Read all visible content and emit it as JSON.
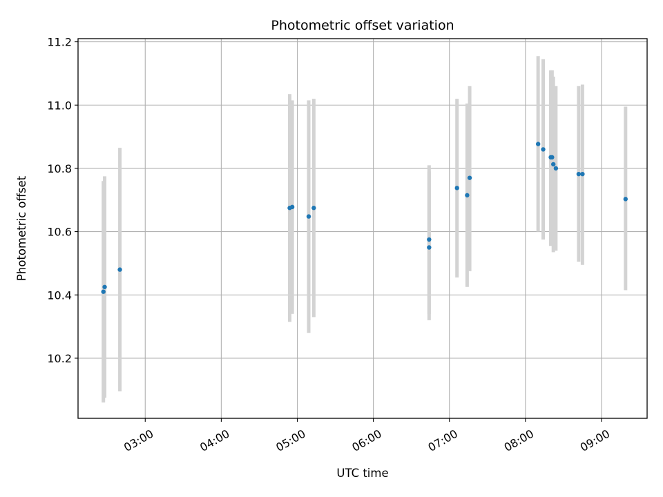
{
  "chart_data": {
    "type": "scatter",
    "title": "Photometric offset variation",
    "xlabel": "UTC time",
    "ylabel": "Photometric offset",
    "x_tick_labels": [
      "03:00",
      "04:00",
      "05:00",
      "06:00",
      "07:00",
      "08:00",
      "09:00"
    ],
    "y_tick_labels": [
      "10.2",
      "10.4",
      "10.6",
      "10.8",
      "11.0",
      "11.2"
    ],
    "y_ticks": [
      10.2,
      10.4,
      10.6,
      10.8,
      11.0,
      11.2
    ],
    "x_ticks_minutes": [
      180,
      240,
      300,
      360,
      420,
      480,
      540
    ],
    "xlim_minutes": [
      127,
      576
    ],
    "ylim": [
      10.01,
      11.21
    ],
    "grid": true,
    "point_color": "#1f77b4",
    "errorbar_color": "#d3d3d3",
    "points": [
      {
        "t": "02:27",
        "y": 10.41,
        "lo": 10.06,
        "hi": 10.76
      },
      {
        "t": "02:28",
        "y": 10.425,
        "lo": 10.075,
        "hi": 10.775
      },
      {
        "t": "02:40",
        "y": 10.48,
        "lo": 10.095,
        "hi": 10.865
      },
      {
        "t": "04:54",
        "y": 10.675,
        "lo": 10.315,
        "hi": 11.035
      },
      {
        "t": "04:56",
        "y": 10.678,
        "lo": 10.34,
        "hi": 11.015
      },
      {
        "t": "05:09",
        "y": 10.648,
        "lo": 10.28,
        "hi": 11.015
      },
      {
        "t": "05:13",
        "y": 10.675,
        "lo": 10.33,
        "hi": 11.02
      },
      {
        "t": "06:44",
        "y": 10.575,
        "lo": 10.34,
        "hi": 10.81
      },
      {
        "t": "06:44",
        "y": 10.55,
        "lo": 10.32,
        "hi": 10.79
      },
      {
        "t": "07:06",
        "y": 10.738,
        "lo": 10.455,
        "hi": 11.02
      },
      {
        "t": "07:14",
        "y": 10.715,
        "lo": 10.425,
        "hi": 11.005
      },
      {
        "t": "07:16",
        "y": 10.77,
        "lo": 10.475,
        "hi": 11.06
      },
      {
        "t": "08:10",
        "y": 10.877,
        "lo": 10.6,
        "hi": 11.155
      },
      {
        "t": "08:14",
        "y": 10.86,
        "lo": 10.575,
        "hi": 11.145
      },
      {
        "t": "08:20",
        "y": 10.835,
        "lo": 10.555,
        "hi": 11.11
      },
      {
        "t": "08:21",
        "y": 10.835,
        "lo": 10.56,
        "hi": 11.11
      },
      {
        "t": "08:22",
        "y": 10.813,
        "lo": 10.535,
        "hi": 11.09
      },
      {
        "t": "08:24",
        "y": 10.8,
        "lo": 10.54,
        "hi": 11.06
      },
      {
        "t": "08:42",
        "y": 10.782,
        "lo": 10.505,
        "hi": 11.06
      },
      {
        "t": "08:45",
        "y": 10.782,
        "lo": 10.495,
        "hi": 11.065
      },
      {
        "t": "09:19",
        "y": 10.703,
        "lo": 10.415,
        "hi": 10.995
      }
    ]
  }
}
